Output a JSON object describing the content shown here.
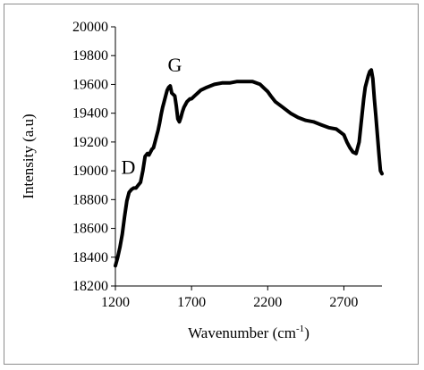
{
  "chart_data": {
    "type": "line",
    "title": "",
    "xlabel": "Wavenumber (cm",
    "xlabel_sup": "-1",
    "xlabel_tail": ")",
    "ylabel": "Intensity (a.u)",
    "xlim": [
      1200,
      2950
    ],
    "ylim": [
      18200,
      20000
    ],
    "xticks": [
      1200,
      1700,
      2200,
      2700
    ],
    "yticks": [
      18200,
      18400,
      18600,
      18800,
      19000,
      19200,
      19400,
      19600,
      19800,
      20000
    ],
    "grid": false,
    "legend": "none",
    "line_color": "#000000",
    "annotations": [
      {
        "text": "D",
        "x": 1285,
        "y": 18980
      },
      {
        "text": "G",
        "x": 1590,
        "y": 19690
      }
    ],
    "series": [
      {
        "x": [
          1200,
          1215,
          1230,
          1245,
          1260,
          1275,
          1290,
          1305,
          1320,
          1335,
          1350,
          1365,
          1380,
          1395,
          1410,
          1420,
          1430,
          1440,
          1450,
          1460,
          1470,
          1480,
          1490,
          1500,
          1510,
          1520,
          1530,
          1540,
          1550,
          1560,
          1570,
          1580,
          1590,
          1600,
          1610,
          1620,
          1630,
          1640,
          1650,
          1660,
          1670,
          1680,
          1690,
          1700,
          1720,
          1740,
          1760,
          1780,
          1800,
          1850,
          1900,
          1950,
          2000,
          2050,
          2100,
          2150,
          2180,
          2200,
          2220,
          2250,
          2300,
          2350,
          2400,
          2450,
          2500,
          2550,
          2600,
          2650,
          2700,
          2720,
          2740,
          2760,
          2780,
          2800,
          2810,
          2820,
          2830,
          2840,
          2850,
          2860,
          2870,
          2880,
          2890,
          2900,
          2910,
          2920,
          2930,
          2940,
          2950
        ],
        "y": [
          18340,
          18400,
          18470,
          18560,
          18680,
          18790,
          18850,
          18870,
          18880,
          18880,
          18900,
          18920,
          19000,
          19100,
          19120,
          19110,
          19130,
          19150,
          19160,
          19200,
          19240,
          19280,
          19330,
          19390,
          19440,
          19480,
          19520,
          19560,
          19580,
          19590,
          19540,
          19530,
          19520,
          19450,
          19360,
          19340,
          19370,
          19410,
          19440,
          19460,
          19480,
          19490,
          19500,
          19500,
          19520,
          19540,
          19560,
          19570,
          19580,
          19600,
          19610,
          19610,
          19620,
          19620,
          19620,
          19600,
          19570,
          19550,
          19520,
          19480,
          19440,
          19400,
          19370,
          19350,
          19340,
          19320,
          19300,
          19290,
          19250,
          19200,
          19160,
          19130,
          19120,
          19200,
          19300,
          19400,
          19500,
          19580,
          19620,
          19660,
          19690,
          19700,
          19640,
          19500,
          19380,
          19250,
          19120,
          19000,
          18980
        ]
      }
    ]
  }
}
